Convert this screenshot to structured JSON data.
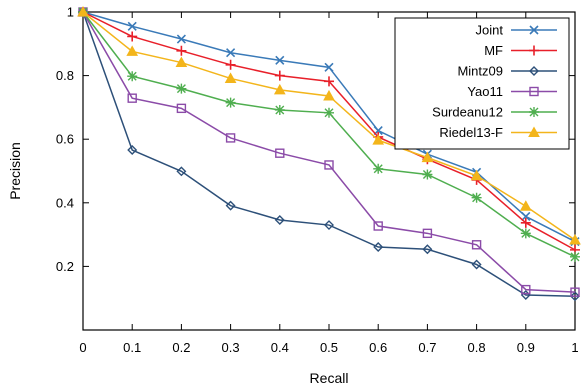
{
  "chart_data": {
    "type": "line",
    "xlabel": "Recall",
    "ylabel": "Precision",
    "xlim": [
      0,
      1
    ],
    "ylim": [
      0,
      1
    ],
    "x_ticks": [
      "0",
      "0.1",
      "0.2",
      "0.3",
      "0.4",
      "0.5",
      "0.6",
      "0.7",
      "0.8",
      "0.9",
      "1"
    ],
    "y_ticks": [
      "0.2",
      "0.4",
      "0.6",
      "0.8",
      "1"
    ],
    "grid": false,
    "legend_position": "top-right",
    "x": [
      0,
      0.1,
      0.2,
      0.3,
      0.4,
      0.5,
      0.6,
      0.7,
      0.8,
      0.9,
      1.0
    ],
    "series": [
      {
        "name": "Joint",
        "color": "#3a7ab8",
        "marker": "x",
        "values": [
          1.0,
          0.955,
          0.915,
          0.872,
          0.848,
          0.826,
          0.627,
          0.553,
          0.496,
          0.357,
          0.278
        ]
      },
      {
        "name": "MF",
        "color": "#e8202a",
        "marker": "plus",
        "values": [
          1.0,
          0.923,
          0.878,
          0.834,
          0.8,
          0.782,
          0.607,
          0.537,
          0.472,
          0.337,
          0.252
        ]
      },
      {
        "name": "Mintz09",
        "color": "#2d5079",
        "marker": "diamond",
        "values": [
          1.0,
          0.566,
          0.499,
          0.391,
          0.346,
          0.33,
          0.261,
          0.254,
          0.206,
          0.11,
          0.106
        ]
      },
      {
        "name": "Yao11",
        "color": "#8b4ba8",
        "marker": "square",
        "values": [
          1.0,
          0.729,
          0.697,
          0.604,
          0.556,
          0.519,
          0.327,
          0.304,
          0.268,
          0.127,
          0.119
        ]
      },
      {
        "name": "Surdeanu12",
        "color": "#4fae4f",
        "marker": "star",
        "values": [
          1.0,
          0.798,
          0.759,
          0.715,
          0.692,
          0.683,
          0.507,
          0.489,
          0.416,
          0.304,
          0.23
        ]
      },
      {
        "name": "Riedel13-F",
        "color": "#f3b51b",
        "marker": "triangle",
        "values": [
          1.0,
          0.876,
          0.841,
          0.791,
          0.755,
          0.736,
          0.597,
          0.542,
          0.485,
          0.389,
          0.283
        ]
      }
    ]
  }
}
